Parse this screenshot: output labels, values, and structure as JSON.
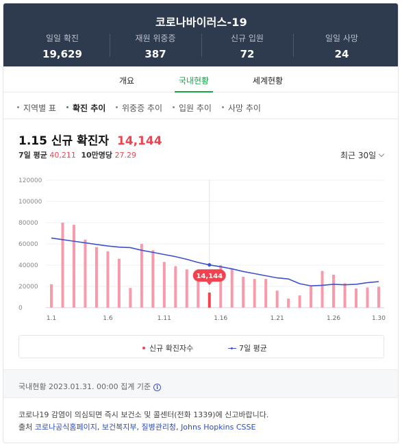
{
  "header": {
    "title": "코로나바이러스-19",
    "stats": [
      {
        "label": "일일 확진",
        "value": "19,629"
      },
      {
        "label": "재원 위중증",
        "value": "387"
      },
      {
        "label": "신규 입원",
        "value": "72"
      },
      {
        "label": "일일 사망",
        "value": "24"
      }
    ]
  },
  "tabs": [
    "개요",
    "국내현황",
    "세계현황"
  ],
  "active_tab": "국내현황",
  "subnav": [
    "지역별 표",
    "확진 추이",
    "위중증 추이",
    "입원 추이",
    "사망 추이"
  ],
  "active_subnav": "확진 추이",
  "headline": {
    "date": "1.15",
    "label": "신규 확진자",
    "value": "14,144"
  },
  "meta": {
    "avg_label": "7일 평균",
    "avg_value": "40,211",
    "per_label": "10만명당",
    "per_value": "27.29"
  },
  "range_select": "최근 30일",
  "chart_data": {
    "type": "bar",
    "title": "",
    "x": [
      "1.1",
      "1.2",
      "1.3",
      "1.4",
      "1.5",
      "1.6",
      "1.7",
      "1.8",
      "1.9",
      "1.10",
      "1.11",
      "1.12",
      "1.13",
      "1.14",
      "1.15",
      "1.16",
      "1.17",
      "1.18",
      "1.19",
      "1.20",
      "1.21",
      "1.22",
      "1.23",
      "1.24",
      "1.25",
      "1.26",
      "1.27",
      "1.28",
      "1.29",
      "1.30"
    ],
    "x_tick_labels": [
      "1.1",
      "1.6",
      "1.11",
      "1.16",
      "1.21",
      "1.26",
      "1.30"
    ],
    "series": [
      {
        "name": "신규 확진자수",
        "type": "bar",
        "values": [
          22000,
          80000,
          78000,
          64000,
          57000,
          53000,
          46000,
          18500,
          60000,
          54000,
          43000,
          39000,
          36000,
          30000,
          14144,
          40000,
          37000,
          29000,
          27000,
          27000,
          16000,
          8500,
          11500,
          20000,
          34500,
          31000,
          23000,
          18000,
          19000,
          19629
        ]
      },
      {
        "name": "7일 평균",
        "type": "line",
        "values": [
          65500,
          64000,
          62500,
          61000,
          59500,
          58000,
          57000,
          56500,
          54000,
          52000,
          50000,
          48000,
          45500,
          42500,
          40211,
          38500,
          36500,
          34000,
          32000,
          30000,
          28000,
          27000,
          22500,
          20500,
          21000,
          22000,
          21500,
          22000,
          23500,
          24500
        ]
      }
    ],
    "ylim": [
      0,
      120000
    ],
    "yticks": [
      "0",
      "20000",
      "40000",
      "60000",
      "80000",
      "100000",
      "120000"
    ],
    "highlight": {
      "index": 14,
      "label": "14,144"
    },
    "colors": {
      "bar": "#f89aab",
      "bar_highlight": "#f0424f",
      "line": "#3d4fd1"
    }
  },
  "legend": {
    "bar_label": "신규 확진자수",
    "line_label": "7일 평균"
  },
  "note": "국내현황 2023.01.31. 00:00 집계 기준",
  "footer": {
    "line1": "코로나19 감염이 의심되면 즉시 보건소 및 콜센터(전화 1339)에 신고바랍니다.",
    "source_label": "출처",
    "sources": [
      "코로나공식홈페이지",
      "보건복지부",
      "질병관리청",
      "Johns Hopkins CSSE"
    ]
  }
}
